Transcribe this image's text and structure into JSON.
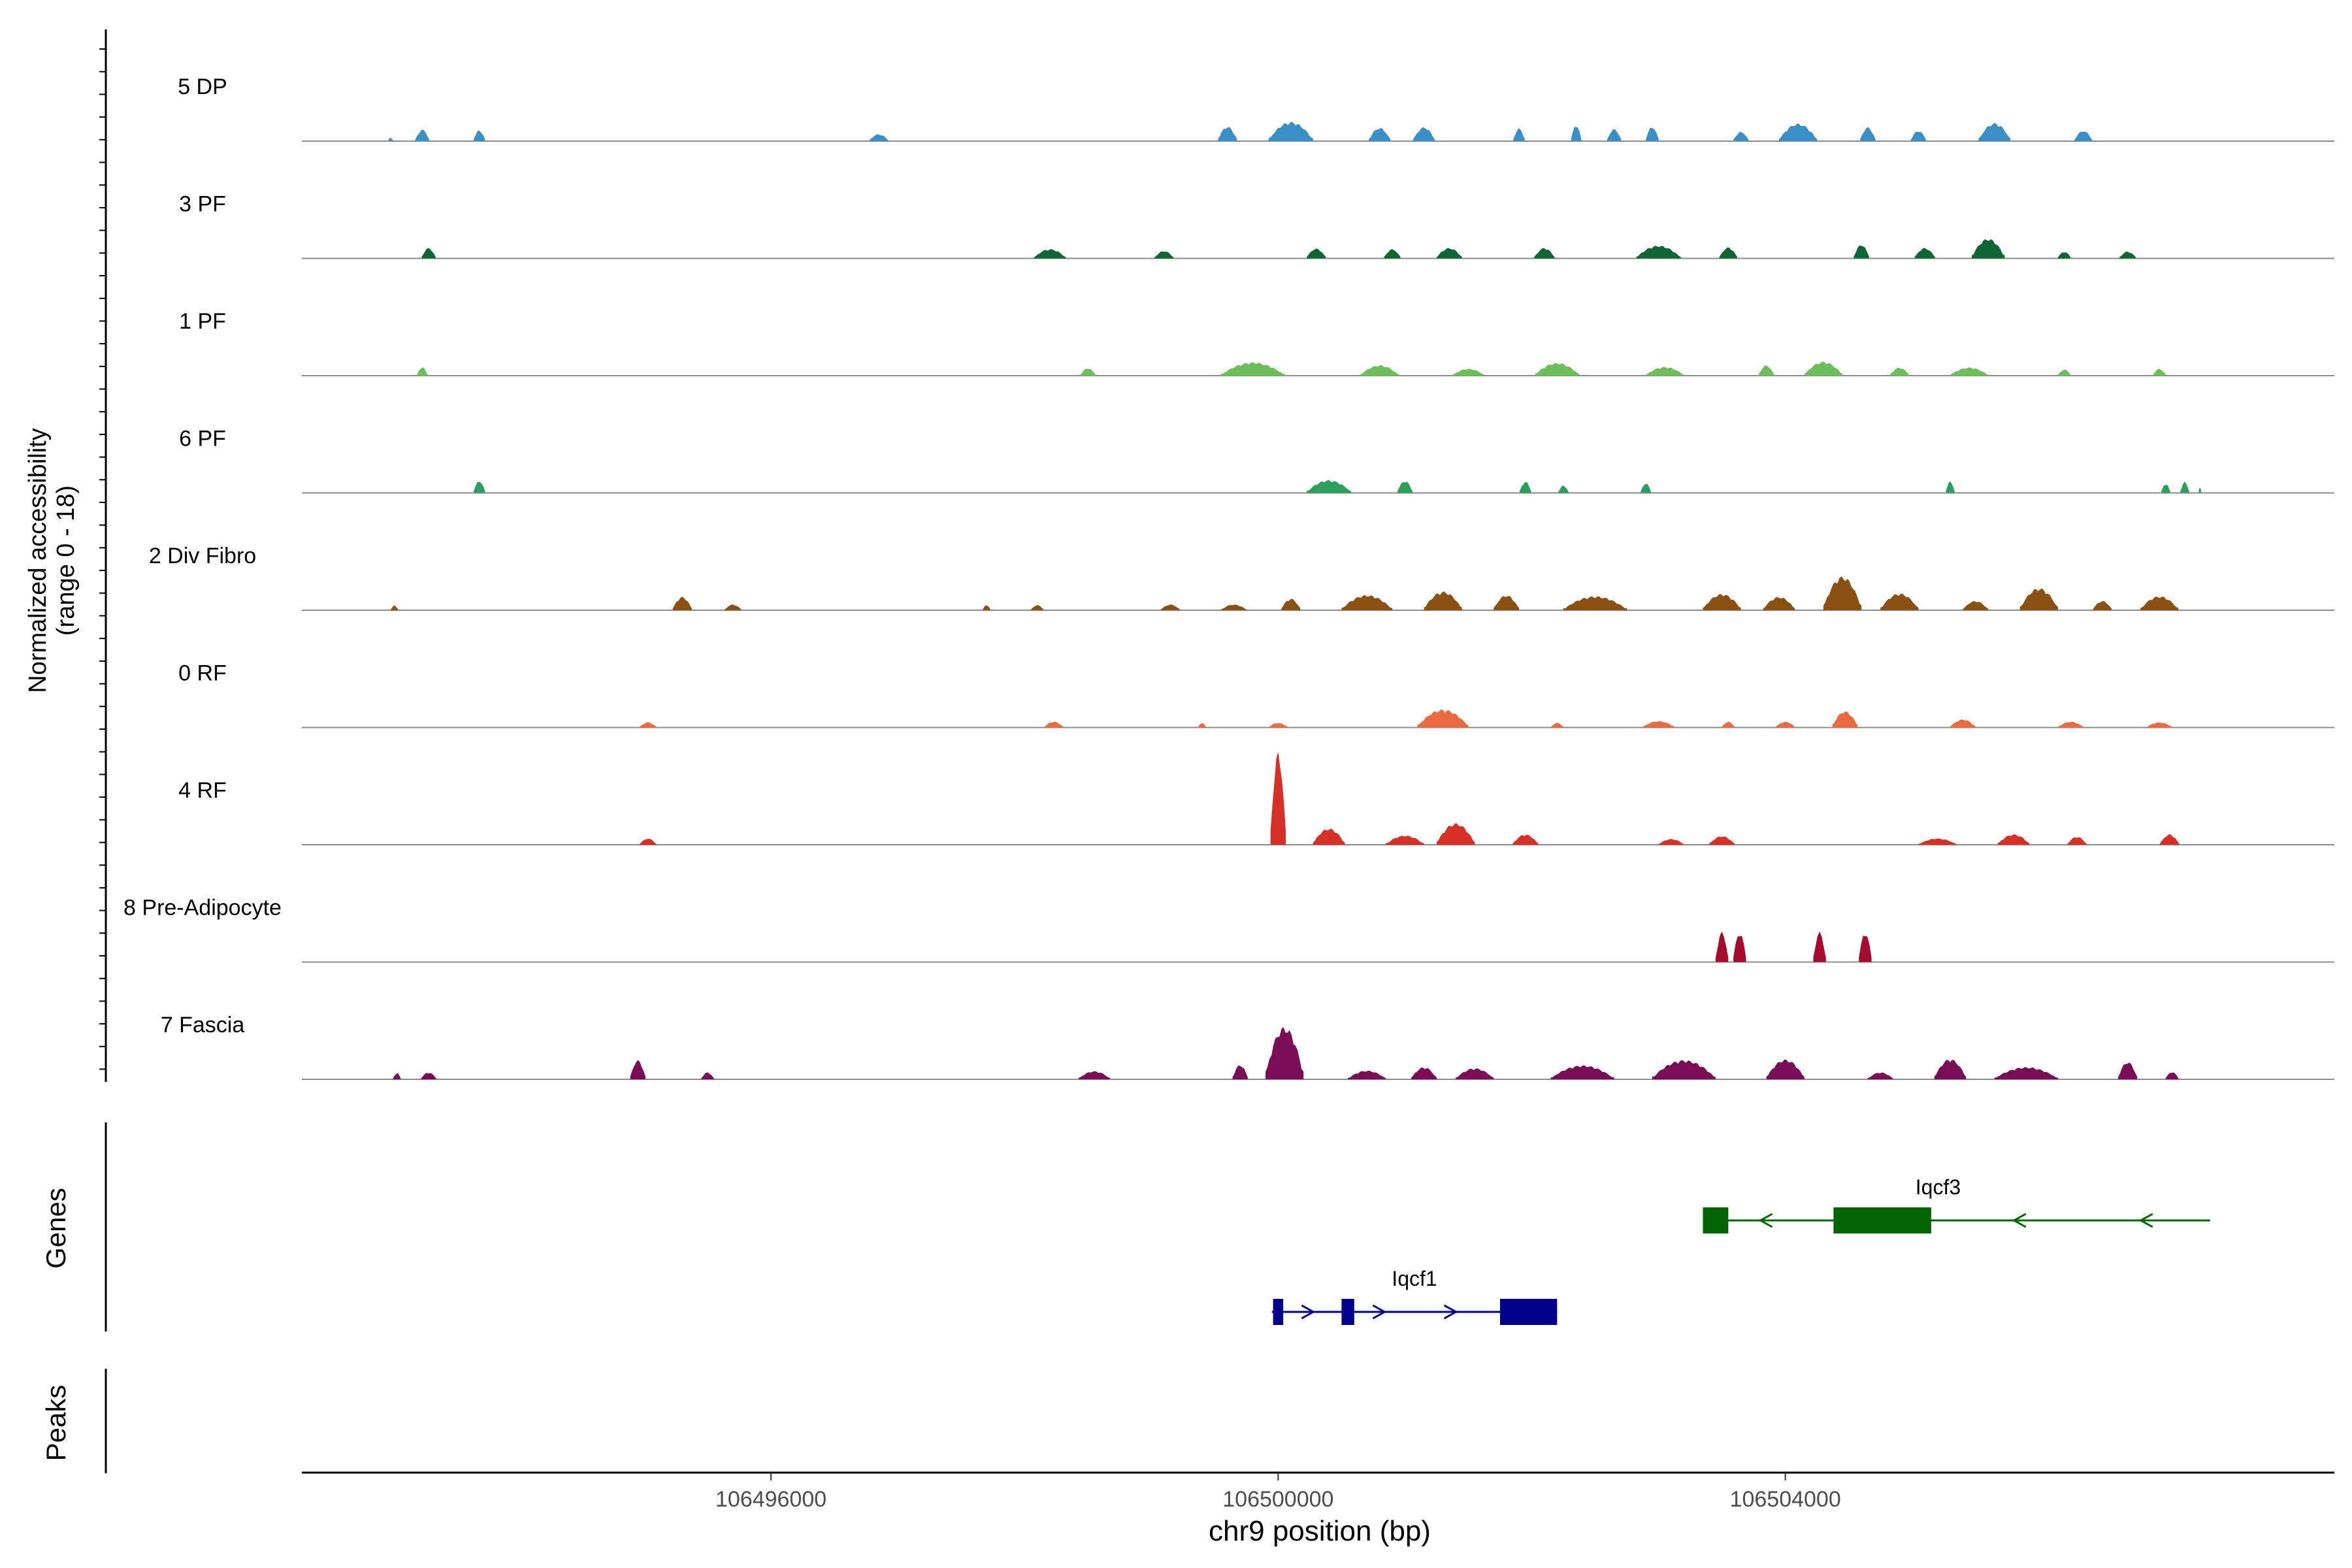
{
  "chart_data": {
    "type": "area",
    "xlabel": "chr9 position (bp)",
    "ylabel": "Normalized accessibility",
    "ylabel_range": "(range 0 - 18)",
    "xlim": [
      106492300,
      106508330
    ],
    "ylim": [
      0,
      18
    ],
    "x_ticks": [
      106496000,
      106500000,
      106504000
    ],
    "tracks": [
      {
        "name": "5 DP",
        "color": "#3a8fc6",
        "peaks": [
          [
            106493000,
            40,
            0.6
          ],
          [
            106493250,
            110,
            2.0
          ],
          [
            106493700,
            90,
            1.9
          ],
          [
            106496850,
            150,
            1.2
          ],
          [
            106499600,
            150,
            2.5
          ],
          [
            106500100,
            350,
            3.3
          ],
          [
            106500800,
            170,
            2.3
          ],
          [
            106501150,
            170,
            2.4
          ],
          [
            106501900,
            90,
            2.2
          ],
          [
            106502350,
            80,
            2.8
          ],
          [
            106502650,
            110,
            2.1
          ],
          [
            106502950,
            100,
            2.5
          ],
          [
            106503650,
            120,
            1.6
          ],
          [
            106504100,
            300,
            3.0
          ],
          [
            106504650,
            120,
            2.4
          ],
          [
            106505050,
            120,
            1.8
          ],
          [
            106505650,
            250,
            3.1
          ],
          [
            106506350,
            140,
            1.8
          ]
        ]
      },
      {
        "name": "3 PF",
        "color": "#0d6634",
        "peaks": [
          [
            106493300,
            110,
            1.8
          ],
          [
            106498200,
            250,
            1.6
          ],
          [
            106499100,
            150,
            1.3
          ],
          [
            106500300,
            150,
            1.7
          ],
          [
            106500900,
            130,
            1.6
          ],
          [
            106501350,
            200,
            1.8
          ],
          [
            106502100,
            160,
            1.8
          ],
          [
            106503000,
            350,
            2.2
          ],
          [
            106503550,
            140,
            1.9
          ],
          [
            106504600,
            120,
            2.4
          ],
          [
            106505100,
            160,
            1.8
          ],
          [
            106505600,
            260,
            3.4
          ],
          [
            106506200,
            100,
            1.2
          ],
          [
            106506700,
            130,
            1.2
          ]
        ]
      },
      {
        "name": "1 PF",
        "color": "#6cbf5a",
        "peaks": [
          [
            106493250,
            80,
            1.5
          ],
          [
            106498500,
            120,
            1.3
          ],
          [
            106499800,
            500,
            2.3
          ],
          [
            106500800,
            300,
            1.8
          ],
          [
            106501500,
            250,
            1.2
          ],
          [
            106502200,
            350,
            2.2
          ],
          [
            106503050,
            300,
            1.5
          ],
          [
            106503850,
            120,
            1.8
          ],
          [
            106504300,
            300,
            2.4
          ],
          [
            106504900,
            150,
            1.4
          ],
          [
            106505450,
            300,
            1.4
          ],
          [
            106506200,
            100,
            1.1
          ],
          [
            106506950,
            100,
            1.2
          ]
        ]
      },
      {
        "name": "6 PF",
        "color": "#2aa05c",
        "peaks": [
          [
            106493700,
            90,
            2.1
          ],
          [
            106500400,
            350,
            2.2
          ],
          [
            106501000,
            120,
            2.1
          ],
          [
            106501950,
            90,
            2.0
          ],
          [
            106502250,
            80,
            1.3
          ],
          [
            106502900,
            80,
            1.7
          ],
          [
            106505300,
            70,
            2.0
          ],
          [
            106507000,
            70,
            1.6
          ],
          [
            106507150,
            70,
            1.9
          ],
          [
            106507270,
            20,
            1.0
          ]
        ]
      },
      {
        "name": "2 Div Fibro",
        "color": "#8b5113",
        "peaks": [
          [
            106493030,
            60,
            0.8
          ],
          [
            106495300,
            150,
            2.3
          ],
          [
            106495700,
            130,
            1.0
          ],
          [
            106497700,
            60,
            0.9
          ],
          [
            106498100,
            100,
            0.9
          ],
          [
            106499150,
            150,
            1.0
          ],
          [
            106499650,
            200,
            1.0
          ],
          [
            106500100,
            150,
            2.0
          ],
          [
            106500700,
            400,
            2.6
          ],
          [
            106501300,
            300,
            3.2
          ],
          [
            106501800,
            200,
            2.6
          ],
          [
            106502500,
            500,
            2.4
          ],
          [
            106503500,
            300,
            2.8
          ],
          [
            106503950,
            250,
            2.3
          ],
          [
            106504450,
            300,
            5.8
          ],
          [
            106504900,
            300,
            2.9
          ],
          [
            106505500,
            200,
            1.6
          ],
          [
            106506000,
            300,
            3.8
          ],
          [
            106506500,
            150,
            1.6
          ],
          [
            106506950,
            300,
            2.4
          ]
        ]
      },
      {
        "name": "0 RF",
        "color": "#ec6a40",
        "peaks": [
          [
            106495030,
            130,
            0.9
          ],
          [
            106498230,
            150,
            1.0
          ],
          [
            106499400,
            60,
            0.8
          ],
          [
            106500000,
            150,
            0.8
          ],
          [
            106501300,
            400,
            3.1
          ],
          [
            106502200,
            100,
            0.8
          ],
          [
            106503000,
            250,
            1.1
          ],
          [
            106503550,
            100,
            1.0
          ],
          [
            106504000,
            150,
            1.0
          ],
          [
            106504470,
            200,
            2.8
          ],
          [
            106505400,
            200,
            1.4
          ],
          [
            106506250,
            200,
            1.0
          ],
          [
            106506950,
            200,
            0.9
          ]
        ]
      },
      {
        "name": "4 RF",
        "color": "#d73027",
        "peaks": [
          [
            106495030,
            130,
            1.1
          ],
          [
            106500000,
            120,
            16.0
          ],
          [
            106500400,
            250,
            2.8
          ],
          [
            106501000,
            300,
            1.6
          ],
          [
            106501400,
            300,
            3.7
          ],
          [
            106501950,
            200,
            1.8
          ],
          [
            106503100,
            200,
            1.0
          ],
          [
            106503500,
            200,
            1.5
          ],
          [
            106505200,
            300,
            1.1
          ],
          [
            106505800,
            250,
            1.8
          ],
          [
            106506300,
            150,
            1.4
          ],
          [
            106507030,
            150,
            1.8
          ]
        ]
      },
      {
        "name": "8 Pre-Adipocyte",
        "color": "#a50b2c",
        "peaks": [
          [
            106503500,
            100,
            5.2
          ],
          [
            106503640,
            100,
            5.2
          ],
          [
            106504270,
            100,
            5.2
          ],
          [
            106504630,
            100,
            5.2
          ]
        ]
      },
      {
        "name": "7 Fascia",
        "color": "#7a0d55",
        "peaks": [
          [
            106493050,
            60,
            1.1
          ],
          [
            106493300,
            120,
            1.2
          ],
          [
            106494950,
            120,
            3.3
          ],
          [
            106495500,
            100,
            1.2
          ],
          [
            106498550,
            250,
            1.4
          ],
          [
            106499700,
            120,
            2.5
          ],
          [
            106500050,
            300,
            9.0
          ],
          [
            106500700,
            300,
            1.5
          ],
          [
            106501150,
            200,
            2.1
          ],
          [
            106501550,
            300,
            1.9
          ],
          [
            106502400,
            500,
            2.4
          ],
          [
            106503200,
            500,
            3.3
          ],
          [
            106504000,
            300,
            3.4
          ],
          [
            106504750,
            200,
            1.2
          ],
          [
            106505300,
            250,
            3.5
          ],
          [
            106505900,
            500,
            2.1
          ],
          [
            106506700,
            150,
            3.0
          ],
          [
            106507050,
            100,
            1.3
          ]
        ]
      }
    ],
    "genes": {
      "label": "Genes",
      "items": [
        {
          "name": "Iqcf3",
          "strand": "-",
          "color": "#006400",
          "start": 106503350,
          "end": 106507350,
          "exons": [
            [
              106503350,
              106503550
            ],
            [
              106504380,
              106505150
            ]
          ]
        },
        {
          "name": "Iqcf1",
          "strand": "+",
          "color": "#00008b",
          "start": 106499950,
          "end": 106502200,
          "exons": [
            [
              106499960,
              106500040
            ],
            [
              106500500,
              106500600
            ],
            [
              106501750,
              106502200
            ]
          ]
        }
      ]
    },
    "peaks_track": {
      "label": "Peaks",
      "regions": []
    }
  }
}
